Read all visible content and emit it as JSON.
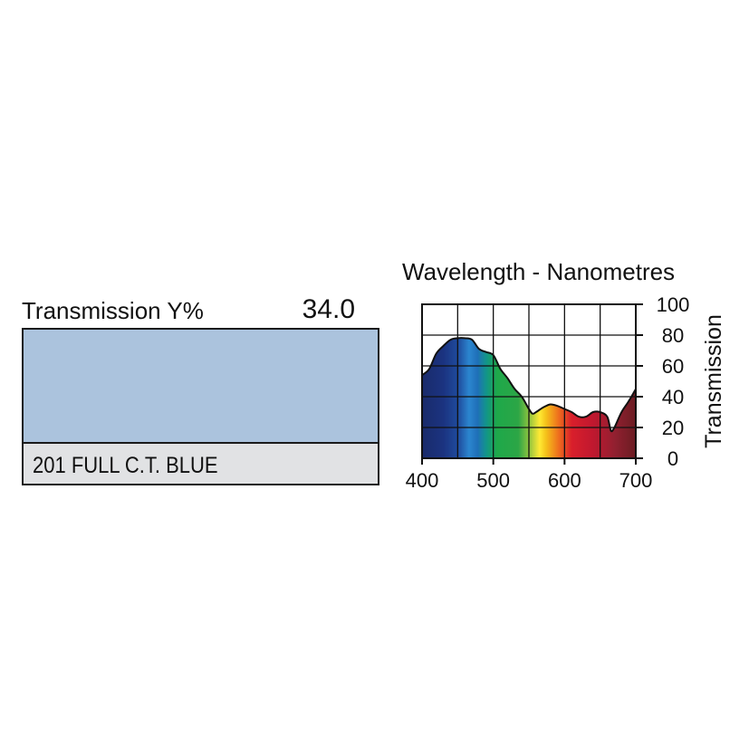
{
  "swatch": {
    "label": "Transmission Y%",
    "value": "34.0",
    "name": "201 FULL C.T. BLUE",
    "color": "#abc3dd"
  },
  "chart_data": {
    "type": "area",
    "title": "Wavelength - Nanometres",
    "ylabel": "Transmission",
    "xlim": [
      400,
      700
    ],
    "ylim": [
      0,
      100
    ],
    "xticks": [
      400,
      500,
      600,
      700
    ],
    "yticks": [
      0,
      20,
      40,
      60,
      80,
      100
    ],
    "grid": true,
    "x": [
      400,
      410,
      420,
      430,
      440,
      450,
      460,
      470,
      480,
      490,
      500,
      510,
      520,
      530,
      540,
      550,
      555,
      560,
      570,
      580,
      590,
      600,
      610,
      620,
      630,
      640,
      650,
      660,
      665,
      670,
      680,
      690,
      700
    ],
    "y": [
      54,
      58,
      68,
      73,
      77,
      78,
      78,
      77,
      71,
      69,
      67,
      58,
      52,
      45,
      40,
      32,
      29,
      30,
      33,
      35,
      34,
      32,
      30,
      27,
      27,
      30,
      30,
      27,
      18,
      20,
      30,
      37,
      45
    ]
  }
}
